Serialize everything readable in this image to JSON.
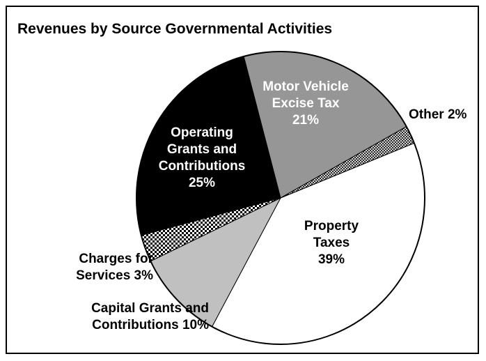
{
  "chart_data": {
    "type": "pie",
    "title": "Revenues by Source Governmental Activities",
    "slices": [
      {
        "label": "Property Taxes",
        "value": 39,
        "label_lines": [
          "Property",
          "Taxes",
          "39%"
        ],
        "color": "#ffffff",
        "text_color": "#000000"
      },
      {
        "label": "Capital Grants and Contributions",
        "value": 10,
        "label_lines": [
          "Capital Grants and",
          "Contributions 10%"
        ],
        "color": "#c0c0c0",
        "text_color": "#000000"
      },
      {
        "label": "Charges for Services",
        "value": 3,
        "label_lines": [
          "Charges for",
          "Services 3%"
        ],
        "color": "pattern-checker",
        "text_color": "#000000"
      },
      {
        "label": "Operating Grants and Contributions",
        "value": 25,
        "label_lines": [
          "Operating",
          "Grants and",
          "Contributions",
          "25%"
        ],
        "color": "#000000",
        "text_color": "#ffffff"
      },
      {
        "label": "Motor Vehicle Excise Tax",
        "value": 21,
        "label_lines": [
          "Motor Vehicle",
          "Excise Tax",
          "21%"
        ],
        "color": "#969696",
        "text_color": "#ffffff"
      },
      {
        "label": "Other",
        "value": 2,
        "label_lines": [
          "Other 2%"
        ],
        "color": "pattern-cross",
        "text_color": "#000000"
      }
    ]
  }
}
